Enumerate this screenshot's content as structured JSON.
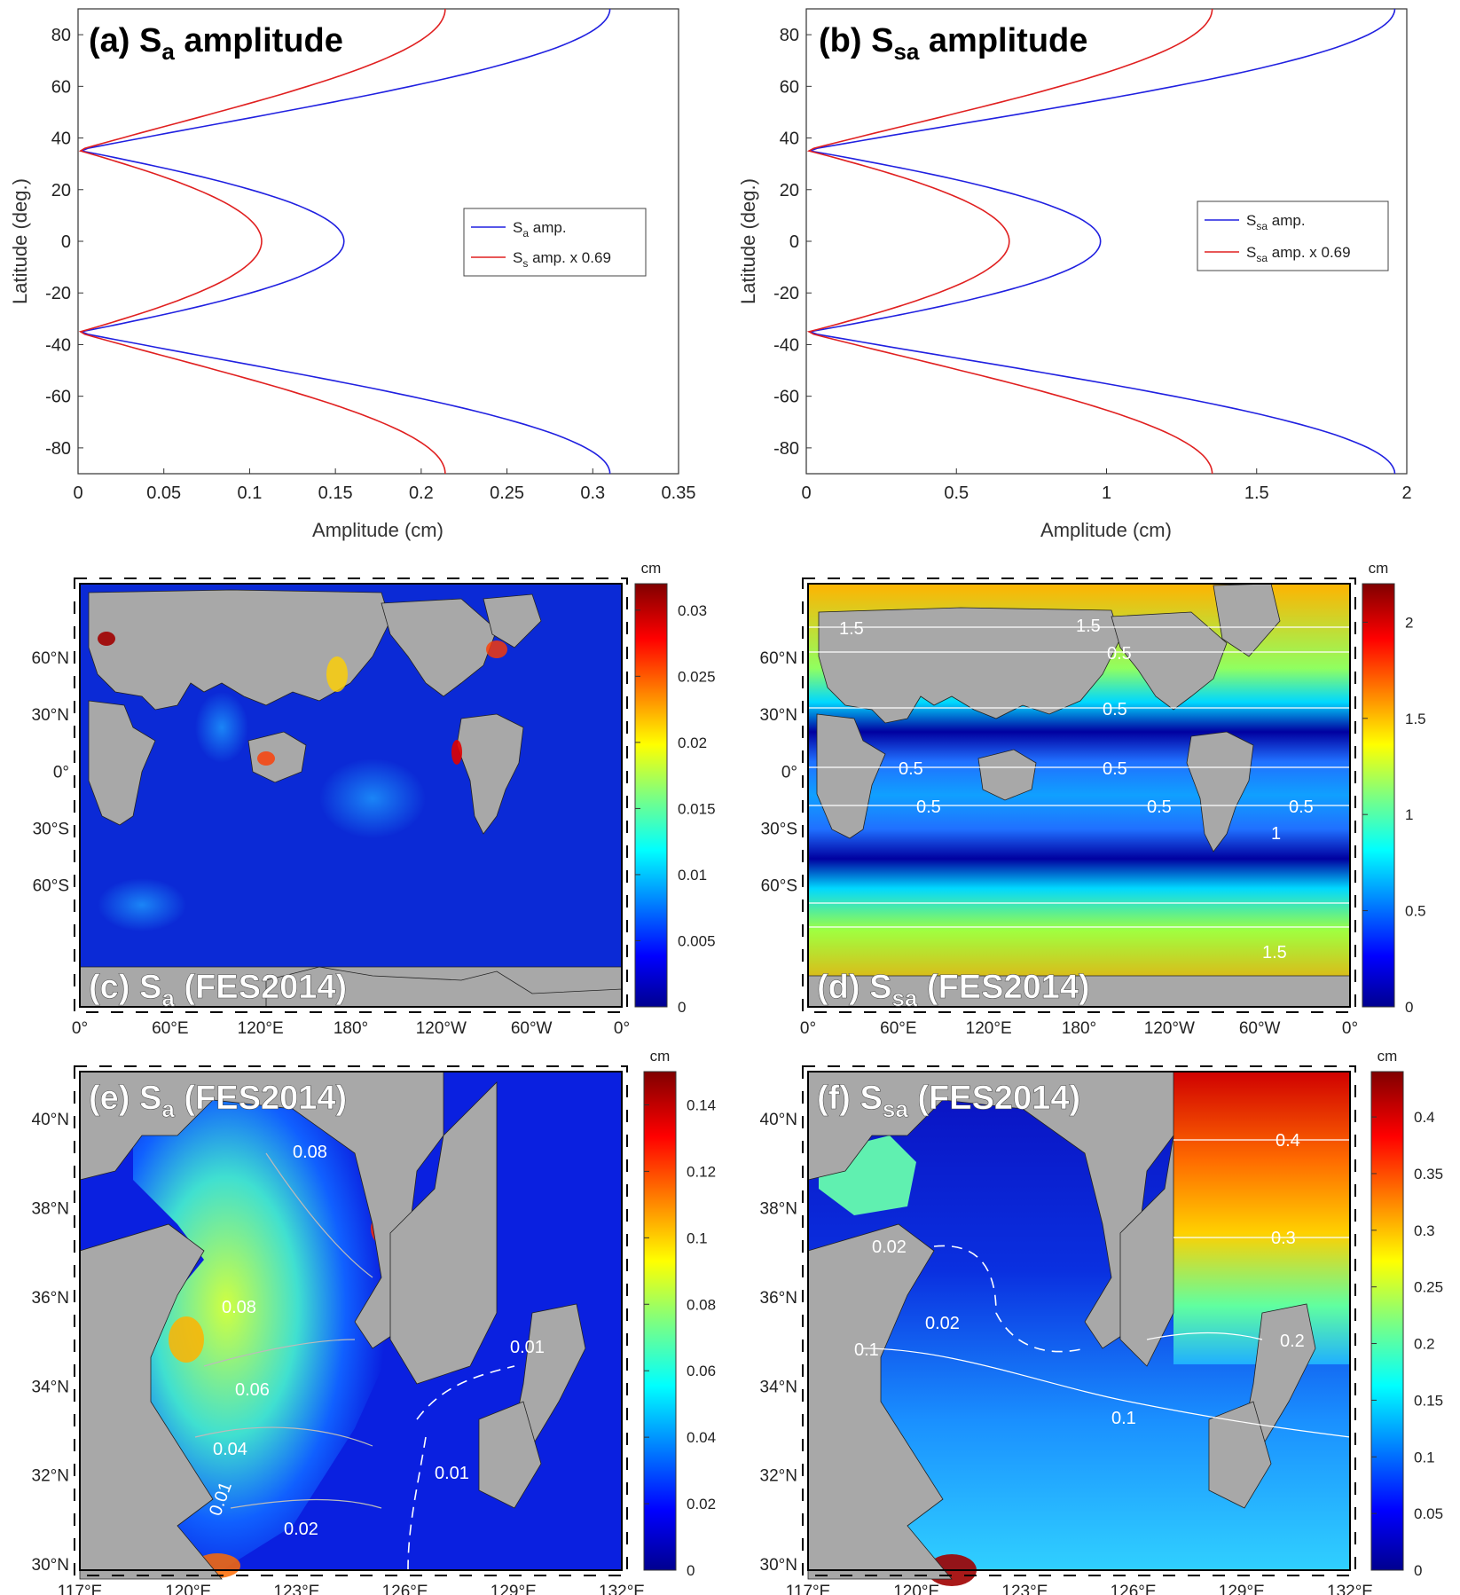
{
  "chart_data": [
    {
      "id": "a",
      "type": "line",
      "title": "(a) Sa amplitude",
      "title_main": "(a) S",
      "title_sub": "a",
      "title_rest": " amplitude",
      "xlabel": "Amplitude (cm)",
      "ylabel": "Latitude (deg.)",
      "xlim": [
        0,
        0.35
      ],
      "ylim": [
        -90,
        90
      ],
      "xticks": [
        "0",
        "0.05",
        "0.1",
        "0.15",
        "0.2",
        "0.25",
        "0.3",
        "0.35"
      ],
      "yticks": [
        "80",
        "60",
        "40",
        "20",
        "0",
        "-20",
        "-40",
        "-60",
        "-80"
      ],
      "legend_position": "center-right",
      "series": [
        {
          "name": "Sa amp.",
          "legend_main": "S",
          "legend_sub": "a",
          "legend_rest": " amp.",
          "color": "#2020e0",
          "equator_value": 0.155,
          "pole_value": 0.31
        },
        {
          "name": "Ss amp. x 0.69",
          "legend_main": "S",
          "legend_sub": "s",
          "legend_rest": " amp. x 0.69",
          "color": "#e02020",
          "equator_value": 0.107,
          "pole_value": 0.214
        }
      ]
    },
    {
      "id": "b",
      "type": "line",
      "title": "(b) Ssa amplitude",
      "title_main": "(b) S",
      "title_sub": "sa",
      "title_rest": " amplitude",
      "xlabel": "Amplitude (cm)",
      "ylabel": "Latitude (deg.)",
      "xlim": [
        0,
        2
      ],
      "ylim": [
        -90,
        90
      ],
      "xticks": [
        "0",
        "0.5",
        "1",
        "1.5",
        "2"
      ],
      "yticks": [
        "80",
        "60",
        "40",
        "20",
        "0",
        "-20",
        "-40",
        "-60",
        "-80"
      ],
      "legend_position": "center-right",
      "series": [
        {
          "name": "Ssa amp.",
          "legend_main": "S",
          "legend_sub": "sa",
          "legend_rest": " amp.",
          "color": "#2020e0",
          "equator_value": 0.98,
          "pole_value": 1.96
        },
        {
          "name": "Ssa amp. x 0.69",
          "legend_main": "S",
          "legend_sub": "sa",
          "legend_rest": " amp. x 0.69",
          "color": "#e02020",
          "equator_value": 0.676,
          "pole_value": 1.352
        }
      ]
    },
    {
      "id": "c",
      "type": "heatmap",
      "title": "(c) Sa (FES2014)",
      "title_main": "(c) S",
      "title_sub": "a",
      "title_rest": " (FES2014)",
      "xticks": [
        "0°",
        "60°E",
        "120°E",
        "180°",
        "120°W",
        "60°W",
        "0°"
      ],
      "yticks": [
        "60°N",
        "30°N",
        "0°",
        "30°S",
        "60°S"
      ],
      "colorbar_unit": "cm",
      "colorbar_range": [
        0,
        0.032
      ],
      "colorbar_ticks": [
        "0.03",
        "0.025",
        "0.02",
        "0.015",
        "0.01",
        "0.005",
        "0"
      ],
      "contour_labels": []
    },
    {
      "id": "d",
      "type": "heatmap",
      "title": "(d) Ssa (FES2014)",
      "title_main": "(d) S",
      "title_sub": "sa",
      "title_rest": " (FES2014)",
      "xticks": [
        "0°",
        "60°E",
        "120°E",
        "180°",
        "120°W",
        "60°W",
        "0°"
      ],
      "yticks": [
        "60°N",
        "30°N",
        "0°",
        "30°S",
        "60°S"
      ],
      "colorbar_unit": "cm",
      "colorbar_range": [
        0,
        2.2
      ],
      "colorbar_ticks": [
        "2",
        "1.5",
        "1",
        "0.5",
        "0"
      ],
      "contour_labels": [
        "1.5",
        "1.5",
        "0.5",
        "0.5",
        "0.5",
        "0.5",
        "0.5",
        "0.5",
        "0.5",
        "1",
        "1.5"
      ]
    },
    {
      "id": "e",
      "type": "heatmap",
      "title": "(e) Sa (FES2014)",
      "title_main": "(e) S",
      "title_sub": "a",
      "title_rest": " (FES2014)",
      "xticks": [
        "117°E",
        "120°E",
        "123°E",
        "126°E",
        "129°E",
        "132°E"
      ],
      "yticks": [
        "40°N",
        "38°N",
        "36°N",
        "34°N",
        "32°N",
        "30°N"
      ],
      "colorbar_unit": "cm",
      "colorbar_range": [
        0,
        0.15
      ],
      "colorbar_ticks": [
        "0.14",
        "0.12",
        "0.1",
        "0.08",
        "0.06",
        "0.04",
        "0.02",
        "0"
      ],
      "contour_labels": [
        "0.08",
        "0.08",
        "0.06",
        "0.04",
        "0.02",
        "0.01",
        "0.01",
        "0.01"
      ]
    },
    {
      "id": "f",
      "type": "heatmap",
      "title": "(f) Ssa (FES2014)",
      "title_main": "(f) S",
      "title_sub": "sa",
      "title_rest": " (FES2014)",
      "xticks": [
        "117°E",
        "120°E",
        "123°E",
        "126°E",
        "129°E",
        "132°E"
      ],
      "yticks": [
        "40°N",
        "38°N",
        "36°N",
        "34°N",
        "32°N",
        "30°N"
      ],
      "colorbar_unit": "cm",
      "colorbar_range": [
        0,
        0.44
      ],
      "colorbar_ticks": [
        "0.4",
        "0.35",
        "0.3",
        "0.25",
        "0.2",
        "0.15",
        "0.1",
        "0.05",
        "0"
      ],
      "contour_labels": [
        "0.4",
        "0.3",
        "0.02",
        "0.02",
        "0.2",
        "0.1",
        "0.1"
      ]
    }
  ]
}
